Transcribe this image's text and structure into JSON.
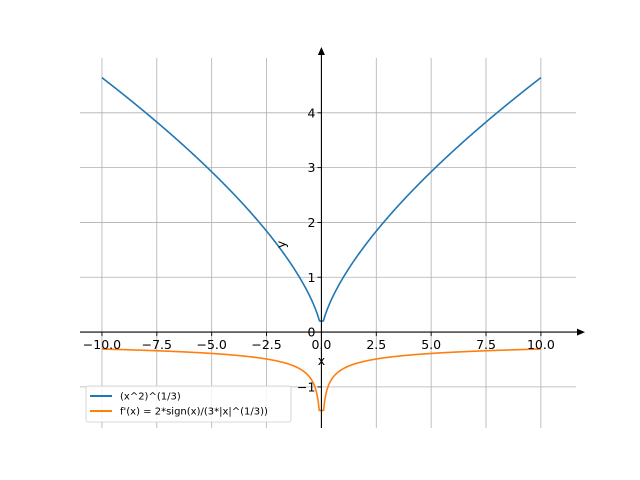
{
  "chart_data": {
    "type": "line",
    "title": "",
    "xlabel": "x",
    "ylabel": "y",
    "xlim": [
      -11.0,
      11.6
    ],
    "ylim": [
      -1.75,
      5.0
    ],
    "x_ticks": [
      -10.0,
      -7.5,
      -5.0,
      -2.5,
      0.0,
      2.5,
      5.0,
      7.5,
      10.0
    ],
    "x_tick_labels": [
      "−10.0",
      "−7.5",
      "−5.0",
      "−2.5",
      "0.0",
      "2.5",
      "5.0",
      "7.5",
      "10.0"
    ],
    "y_ticks": [
      -1,
      0,
      1,
      2,
      3,
      4
    ],
    "y_tick_labels": [
      "−1",
      "0",
      "1",
      "2",
      "3",
      "4"
    ],
    "grid": true,
    "axes_through_origin": true,
    "legend_position": "lower-left",
    "series": [
      {
        "name": "(x^2)^(1/3)",
        "color": "#1f77b4",
        "x": [
          -10,
          -8,
          -6,
          -4,
          -2,
          -1,
          -0.5,
          -0.2,
          -0.1,
          0,
          0.1,
          0.2,
          0.5,
          1,
          2,
          4,
          6,
          8,
          10
        ],
        "y": [
          4.64,
          4.0,
          3.3,
          2.52,
          1.59,
          1.0,
          0.63,
          0.34,
          0.22,
          0.2,
          0.22,
          0.34,
          0.63,
          1.0,
          1.59,
          2.52,
          3.3,
          4.0,
          4.64
        ]
      },
      {
        "name": "f'(x) = 2*sign(x)/(3*|x|^(1/3))",
        "color": "#ff7f0e",
        "x": [
          -10,
          -8,
          -6,
          -4,
          -2,
          -1,
          -0.5,
          -0.2,
          -0.1,
          0,
          0.1,
          0.2,
          0.5,
          1,
          2,
          4,
          6,
          8,
          10
        ],
        "y": [
          -0.31,
          -0.33,
          -0.37,
          -0.42,
          -0.53,
          -0.67,
          -0.84,
          -1.14,
          -1.43,
          -1.43,
          -1.43,
          -1.14,
          -0.84,
          -0.67,
          -0.53,
          -0.42,
          -0.37,
          -0.33,
          -0.31
        ]
      }
    ]
  }
}
